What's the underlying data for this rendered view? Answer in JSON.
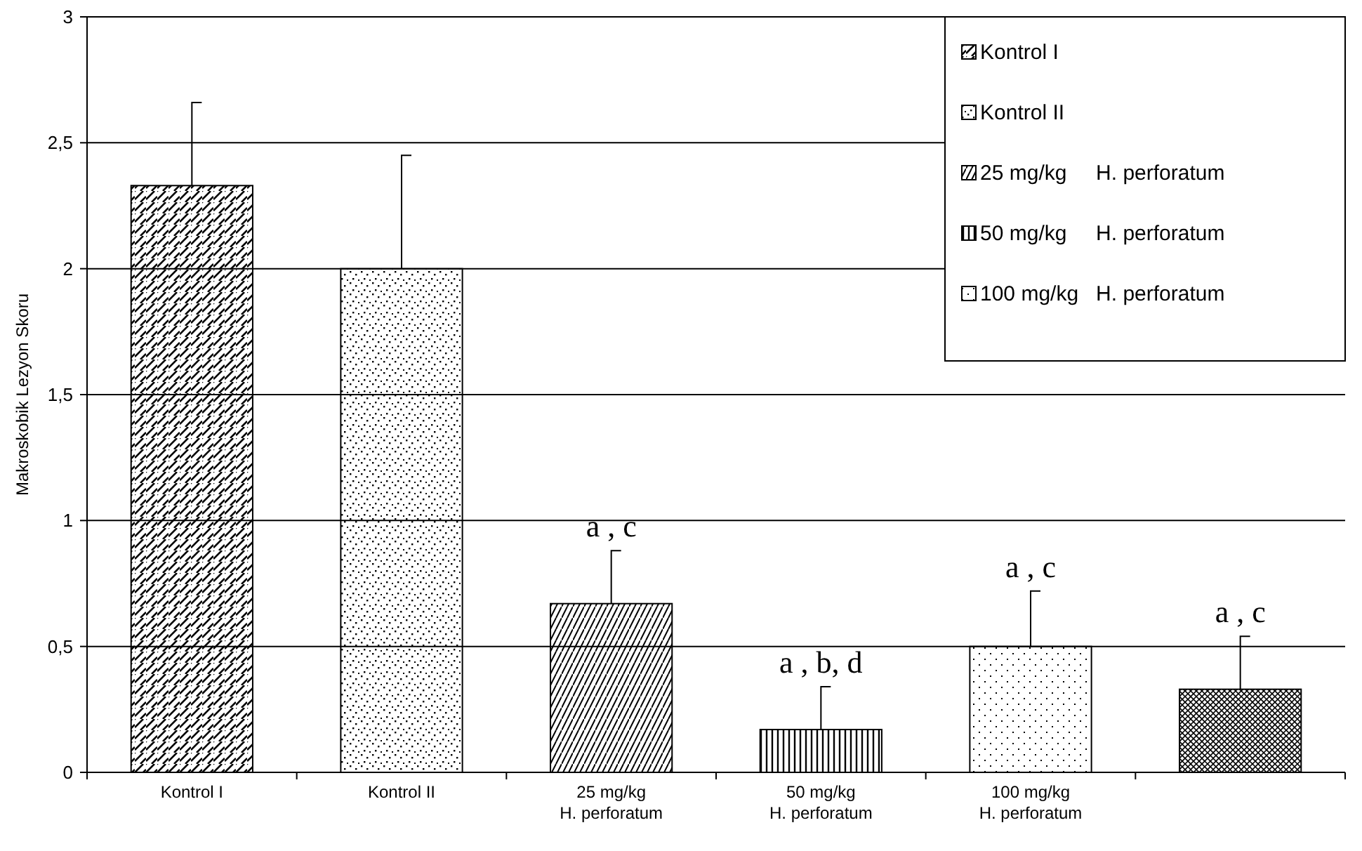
{
  "chart_data": {
    "type": "bar",
    "stacked": true,
    "ylabel": "Makroskobik Lezyon Skoru",
    "categories": [
      "Kontrol I",
      "Kontrol II",
      "25 mg/kg\nH. perforatum",
      "50 mg/kg\nH. perforatum",
      "100 mg/kg\nH. perforatum",
      null
    ],
    "series": [
      {
        "name": "Kontrol I",
        "color": "#000000",
        "values": [
          2.33,
          null,
          null,
          null,
          null,
          null
        ],
        "errors": [
          [
            2.33,
            2.66
          ],
          null,
          null,
          null,
          null,
          null
        ]
      },
      {
        "name": "Kontrol II",
        "color": "#000000",
        "values": [
          null,
          2.0,
          null,
          null,
          null,
          null
        ],
        "errors": [
          null,
          [
            2.0,
            2.45
          ],
          null,
          null,
          null,
          null
        ]
      },
      {
        "name": "25 mg/kg     H. perforatum",
        "color": "#000000",
        "values": [
          null,
          null,
          0.67,
          null,
          null,
          null
        ],
        "errors": [
          null,
          null,
          [
            0.67,
            0.88
          ],
          null,
          null,
          null
        ]
      },
      {
        "name": "50 mg/kg     H. perforatum",
        "color": "#000000",
        "values": [
          null,
          null,
          null,
          0.17,
          null,
          null
        ],
        "errors": [
          null,
          null,
          null,
          [
            0.17,
            0.34
          ],
          null,
          null
        ]
      },
      {
        "name": "100 mg/kg   H. perforatum",
        "color": "#000000",
        "values": [
          null,
          null,
          null,
          null,
          0.5,
          null
        ],
        "errors": [
          null,
          null,
          null,
          null,
          [
            0.5,
            0.72
          ],
          null
        ]
      },
      {
        "color": "#000000",
        "values": [
          null,
          null,
          null,
          null,
          null,
          0.33
        ],
        "errors": [
          null,
          null,
          null,
          null,
          null,
          [
            0.33,
            0.54
          ]
        ]
      }
    ],
    "ylim": [
      0,
      3
    ],
    "yticks": [
      0,
      {
        "value": 0.5,
        "label": "0,5"
      },
      1,
      {
        "value": 1.5,
        "label": "1,5"
      },
      2,
      {
        "value": 2.5,
        "label": "2,5"
      },
      3
    ],
    "grid": "y",
    "legend": "top right",
    "annotations": [
      "a , c",
      "a , b, d",
      "a , c",
      "a , c"
    ]
  }
}
